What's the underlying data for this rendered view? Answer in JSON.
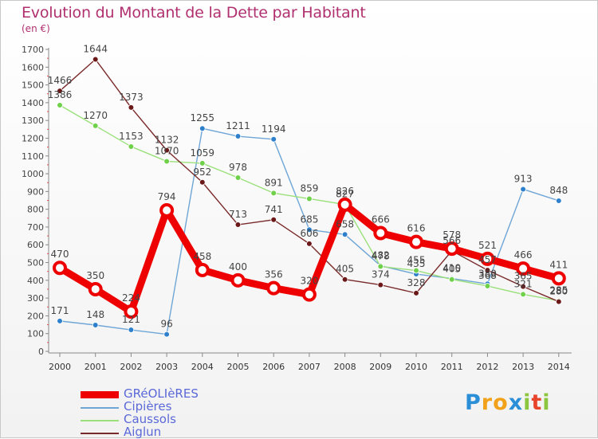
{
  "title": "Evolution du Montant de la Dette par Habitant",
  "unit_label": "(en €)",
  "logo": {
    "letters": [
      {
        "ch": "P",
        "color": "#2b8fd8"
      },
      {
        "ch": "r",
        "color": "#f2a21a"
      },
      {
        "ch": "o",
        "color": "#f2a21a"
      },
      {
        "ch": "x",
        "color": "#2b8fd8"
      },
      {
        "ch": "i",
        "color": "#8cc63f"
      },
      {
        "ch": "t",
        "color": "#e8442c"
      },
      {
        "ch": "i",
        "color": "#8cc63f"
      }
    ]
  },
  "chart_data": {
    "type": "line",
    "title": "Evolution du Montant de la Dette par Habitant",
    "ylabel": "(en €)",
    "xlabel": "",
    "x": [
      "2000",
      "2001",
      "2002",
      "2003",
      "2004",
      "2005",
      "2006",
      "2007",
      "2008",
      "2009",
      "2010",
      "2011",
      "2012",
      "2013",
      "2014"
    ],
    "ylim": [
      0,
      1700
    ],
    "yticks": [
      0,
      100,
      200,
      300,
      400,
      500,
      600,
      700,
      800,
      900,
      1000,
      1100,
      1200,
      1300,
      1400,
      1500,
      1600,
      1700
    ],
    "grid": false,
    "legend_position": "bottom-left",
    "series": [
      {
        "name": "GRéOLIèRES",
        "color": "#ee0000",
        "dot_color": "#ee0000",
        "emphasis": true,
        "values": [
          470,
          350,
          224,
          794,
          458,
          400,
          356,
          320,
          826,
          666,
          616,
          578,
          521,
          466,
          411
        ],
        "labels": [
          "470",
          "350",
          "224",
          "794",
          "458",
          "400",
          "356",
          "320",
          "826",
          "666",
          "616",
          "578",
          "521",
          "466",
          "411"
        ]
      },
      {
        "name": "Cipières",
        "color": "#6fa6d6",
        "dot_color": "#2f80cc",
        "emphasis": false,
        "values": [
          171,
          148,
          121,
          96,
          1255,
          1211,
          1194,
          685,
          658,
          482,
          435,
          410,
          380,
          913,
          848
        ],
        "labels": [
          "171",
          "148",
          "121",
          "96",
          "1255",
          "1211",
          "1194",
          "685",
          "658",
          "482",
          "435",
          "410",
          "380",
          "913",
          "848"
        ]
      },
      {
        "name": "Caussols",
        "color": "#9be07a",
        "dot_color": "#6fd04a",
        "emphasis": false,
        "values": [
          1386,
          1270,
          1153,
          1070,
          1059,
          978,
          891,
          859,
          827,
          478,
          455,
          405,
          368,
          321,
          285
        ],
        "labels": [
          "1386",
          "1270",
          "1153",
          "1070",
          "1059",
          "978",
          "891",
          "859",
          "827",
          "478",
          "455",
          "405",
          "368",
          "321",
          "285"
        ]
      },
      {
        "name": "Aiglun",
        "color": "#7a2a2a",
        "dot_color": "#6b1818",
        "emphasis": false,
        "values": [
          1466,
          1644,
          1373,
          1132,
          952,
          713,
          741,
          606,
          405,
          374,
          328,
          566,
          457,
          365,
          280
        ],
        "labels": [
          "1466",
          "1644",
          "1373",
          "1132",
          "952",
          "713",
          "741",
          "606",
          "405",
          "374",
          "328",
          "566",
          "457",
          "365",
          "280"
        ]
      }
    ]
  }
}
